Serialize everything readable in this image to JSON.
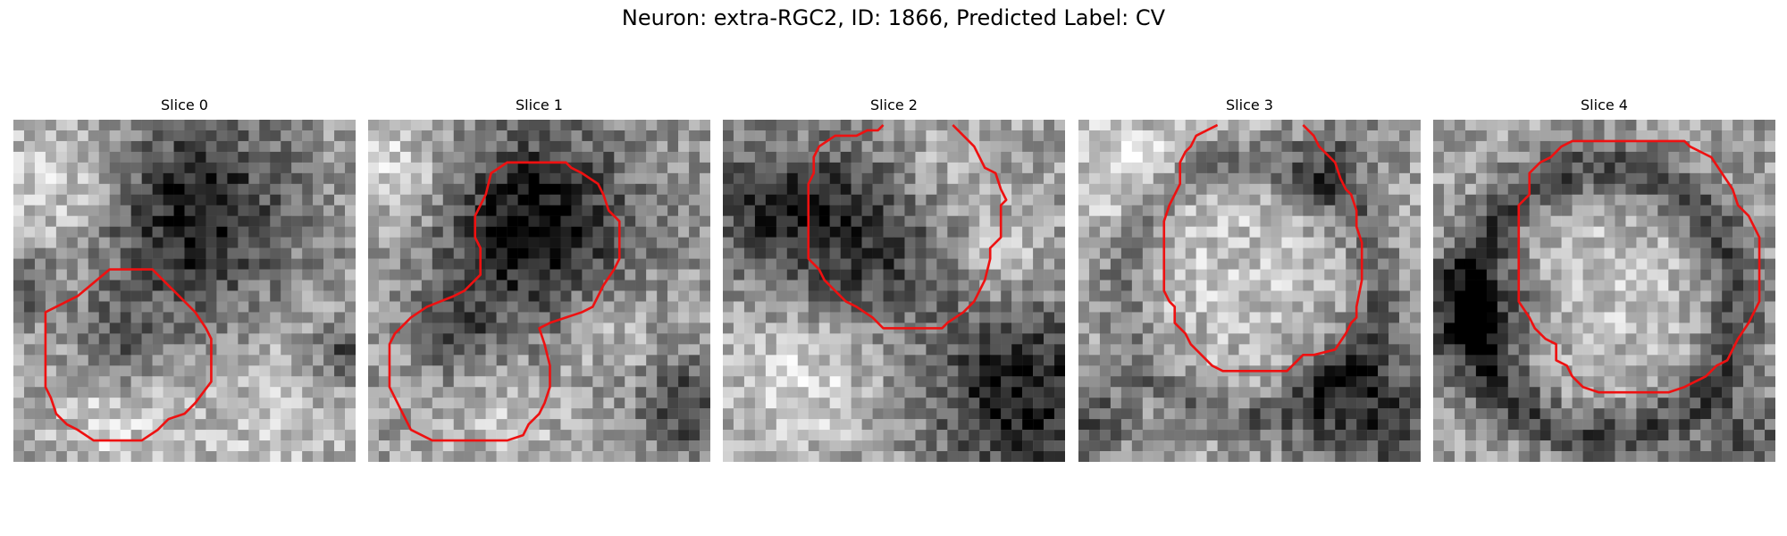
{
  "figure": {
    "title": "Neuron: extra-RGC2, ID: 1866, Predicted Label: CV",
    "contour_color": "#ee1111",
    "colormap": "gray"
  },
  "panels": [
    {
      "title": "Slice 0",
      "seed": 11
    },
    {
      "title": "Slice 1",
      "seed": 23
    },
    {
      "title": "Slice 2",
      "seed": 37
    },
    {
      "title": "Slice 3",
      "seed": 41
    },
    {
      "title": "Slice 4",
      "seed": 59
    }
  ]
}
